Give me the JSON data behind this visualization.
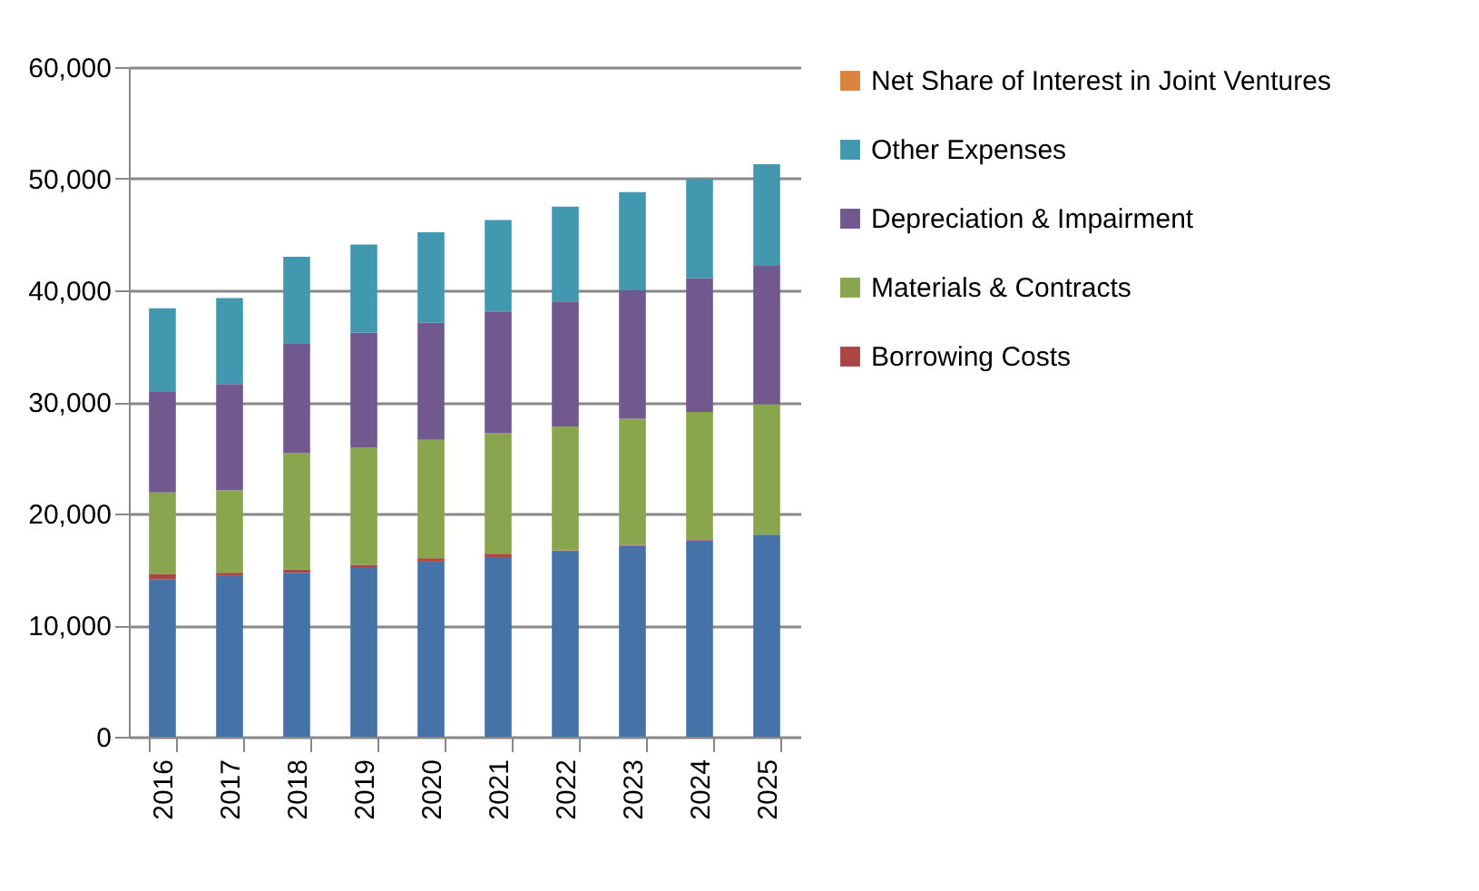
{
  "chart_data": {
    "type": "bar",
    "stacked": true,
    "categories": [
      "2016",
      "2017",
      "2018",
      "2019",
      "2020",
      "2021",
      "2022",
      "2023",
      "2024",
      "2025"
    ],
    "series": [
      {
        "color": "#4572a7",
        "values": [
          14100,
          14400,
          14700,
          15200,
          15700,
          16100,
          16600,
          17100,
          17600,
          18100
        ]
      },
      {
        "name": "Borrowing Costs",
        "color": "#aa4643",
        "values": [
          500,
          300,
          300,
          200,
          300,
          300,
          100,
          100,
          100,
          0
        ]
      },
      {
        "name": "Materials & Contracts",
        "color": "#89a54e",
        "values": [
          7300,
          7400,
          10400,
          10500,
          10600,
          10800,
          11100,
          11300,
          11400,
          11700
        ]
      },
      {
        "name": "Depreciation & Impairment",
        "color": "#71588f",
        "values": [
          9000,
          9500,
          9800,
          10300,
          10500,
          10900,
          11200,
          11500,
          12000,
          12400
        ]
      },
      {
        "name": "Other Expenses",
        "color": "#4198af",
        "values": [
          7500,
          7700,
          7800,
          7900,
          8100,
          8200,
          8500,
          8800,
          8900,
          9100
        ]
      },
      {
        "name": "Net Share of Interest in Joint Ventures",
        "color": "#db843d",
        "values": [
          0,
          0,
          0,
          0,
          0,
          0,
          0,
          0,
          0,
          0
        ]
      }
    ],
    "ylim": [
      0,
      60000
    ],
    "yticks": [
      0,
      {
        "value": 10000,
        "label": "10,000"
      },
      {
        "value": 20000,
        "label": "20,000"
      },
      {
        "value": 30000,
        "label": "30,000"
      },
      {
        "value": 40000,
        "label": "40,000"
      },
      {
        "value": 50000,
        "label": "50,000"
      },
      {
        "value": 60000,
        "label": "60,000"
      }
    ],
    "grid": "y",
    "legend": "right"
  }
}
